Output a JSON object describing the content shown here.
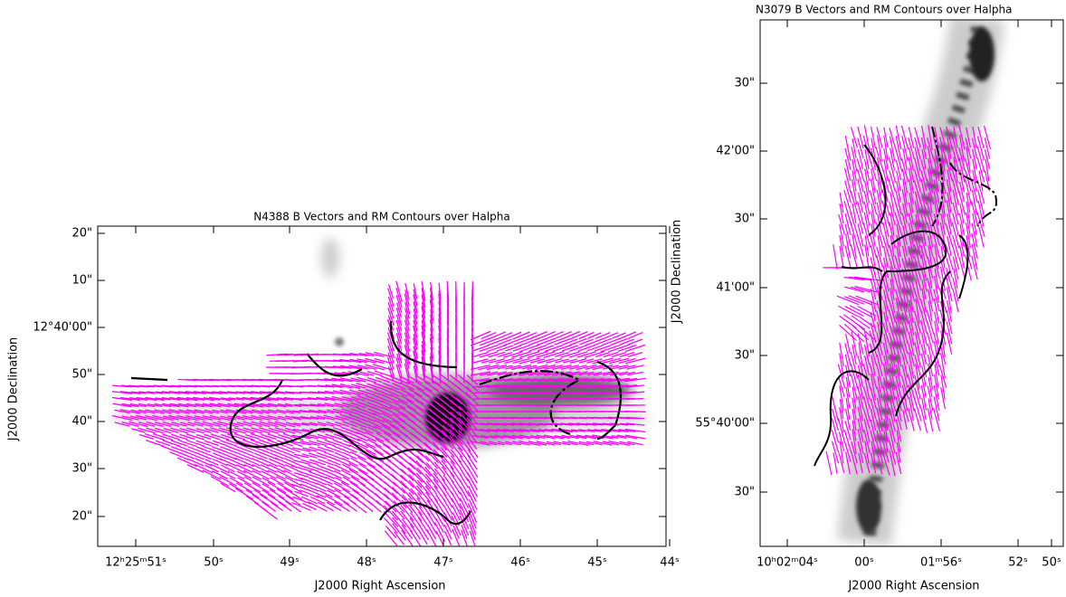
{
  "panels": [
    {
      "title": "N4388 B Vectors and RM Contours over Halpha",
      "x_label": "J2000 Right Ascension",
      "y_label": "J2000 Declination",
      "x_ticks": [
        "12ʰ25ᵐ51ˢ",
        "50ˢ",
        "49ˢ",
        "48ˢ",
        "47ˢ",
        "46ˢ",
        "45ˢ",
        "44ˢ"
      ],
      "y_ticks": [
        "20\"",
        "10\"",
        "12°40'00\"",
        "50\"",
        "40\"",
        "30\"",
        "20\""
      ]
    },
    {
      "title": "N3079 B Vectors and RM Contours over Halpha",
      "x_label": "J2000 Right Ascension",
      "y_label": "J2000 Declination",
      "x_ticks": [
        "10ʰ02ᵐ04ˢ",
        "00ˢ",
        "01ᵐ56ˢ",
        "52ˢ",
        "50ˢ"
      ],
      "y_ticks": [
        "30\"",
        "42'00\"",
        "30\"",
        "41'00\"",
        "30\"",
        "55°40'00\"",
        "30\""
      ]
    }
  ]
}
